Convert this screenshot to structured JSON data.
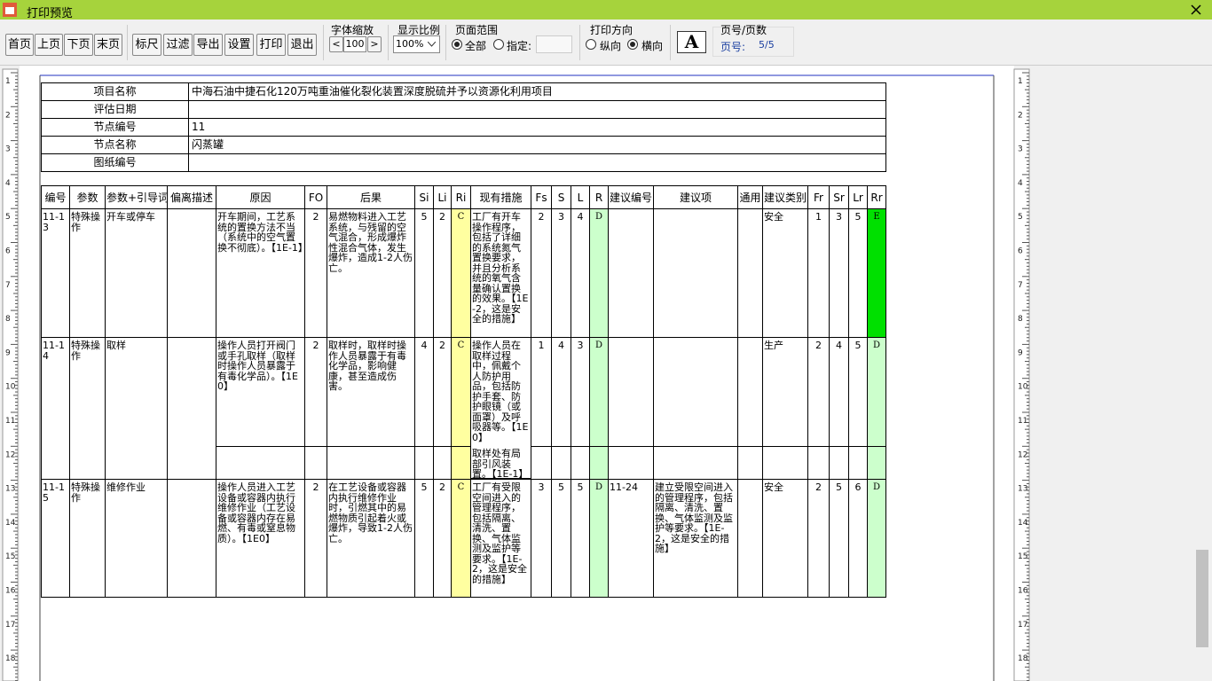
{
  "window": {
    "title": "打印预览"
  },
  "toolbar": {
    "nav_buttons": [
      "首页",
      "上页",
      "下页",
      "末页"
    ],
    "action_buttons": [
      "标尺",
      "过滤",
      "导出",
      "设置",
      "打印",
      "退出"
    ],
    "font_zoom": {
      "label": "字体缩放",
      "dec": "<",
      "value": 100,
      "inc": ">"
    },
    "display_ratio": {
      "label": "显示比例",
      "value": "100%"
    },
    "page_range": {
      "label": "页面范围",
      "all": "全部",
      "specify": "指定:"
    },
    "orientation": {
      "label": "打印方向",
      "portrait": "纵向",
      "landscape": "横向"
    },
    "font_icon": "A",
    "page_info": {
      "label": "页号/页数",
      "page_label": "页号:",
      "page_value": "5/5"
    }
  },
  "ruler": [
    1,
    2,
    3,
    4,
    5,
    6,
    7,
    8,
    9,
    10,
    11,
    12,
    13,
    14,
    15,
    16,
    17,
    18
  ],
  "info": {
    "rows": [
      {
        "label": "项目名称",
        "value": "中海石油中捷石化120万吨重油催化裂化装置深度脱硫并予以资源化利用项目"
      },
      {
        "label": "评估日期"
      },
      {
        "label": "节点编号",
        "value": 11
      },
      {
        "label": "节点名称",
        "value": "闪蒸罐"
      },
      {
        "label": "图纸编号"
      }
    ]
  },
  "table": {
    "headers": [
      "编号",
      "参数",
      "参数+引导词",
      "偏离描述",
      "原因",
      "FO",
      "后果",
      "Si",
      "Li",
      "Ri",
      "现有措施",
      "Fs",
      "S",
      "L",
      "R",
      "建议编号",
      "建议项",
      "通用",
      "建议类别",
      "Fr",
      "Sr",
      "Lr",
      "Rr"
    ],
    "ri_color": "#ffffa0",
    "r_color": "#ccffcc",
    "rows": [
      {
        "rr_color": "#00e000",
        "cells": [
          "11-13",
          "特殊操作",
          "开车或停车",
          null,
          "开车期间，工艺系统的置换方法不当（系统中的空气置换不彻底）。【1E-1】",
          2,
          "易燃物料进入工艺系统，与残留的空气混合，形成爆炸性混合气体，发生爆炸，造成1-2人伤亡。",
          5,
          2,
          "C",
          "工厂有开车操作程序，包括了详细的系统氮气置换要求，并且分析系统的氧气含量确认置换的效果。【1E-2，这是安全的措施】",
          2,
          3,
          4,
          "D",
          null,
          null,
          null,
          "安全",
          1,
          3,
          5,
          "E"
        ]
      },
      {
        "rr_color": "#ccffcc",
        "cells": [
          "11-14",
          "特殊操作",
          "取样",
          null,
          "操作人员打开阀门或手孔取样（取样时操作人员暴露于有毒化学品）。【1E0】",
          2,
          "取样时，取样时操作人员暴露于有毒化学品，影响健康，甚至造成伤害。",
          4,
          2,
          "C",
          "操作人员在取样过程中，佩戴个人防护用品，包括防护手套、防护眼镜（或面罩）及呼吸器等。【1E0】",
          1,
          4,
          3,
          "D",
          null,
          null,
          null,
          "生产",
          2,
          4,
          5,
          "D"
        ],
        "extra_measure": "取样处有局部引风装置。【1E-1】"
      },
      {
        "rr_color": "#ccffcc",
        "cells": [
          "11-15",
          "特殊操作",
          "维修作业",
          null,
          "操作人员进入工艺设备或容器内执行维修作业（工艺设备或容器内存在易燃、有毒或窒息物质）。【1E0】",
          2,
          "在工艺设备或容器内执行维修作业时，引燃其中的易燃物质引起着火或爆炸，导致1-2人伤亡。",
          5,
          2,
          "C",
          "工厂有受限空间进入的管理程序，包括隔离、清洗、置换、气体监测及监护等要求。【1E-2，这是安全的措施】",
          3,
          5,
          5,
          "D",
          "11-24",
          "建立受限空间进入的管理程序，包括隔离、清洗、置换、气体监测及监护等要求。【1E-2，这是安全的措施】",
          null,
          "安全",
          2,
          5,
          6,
          "D"
        ]
      }
    ]
  }
}
